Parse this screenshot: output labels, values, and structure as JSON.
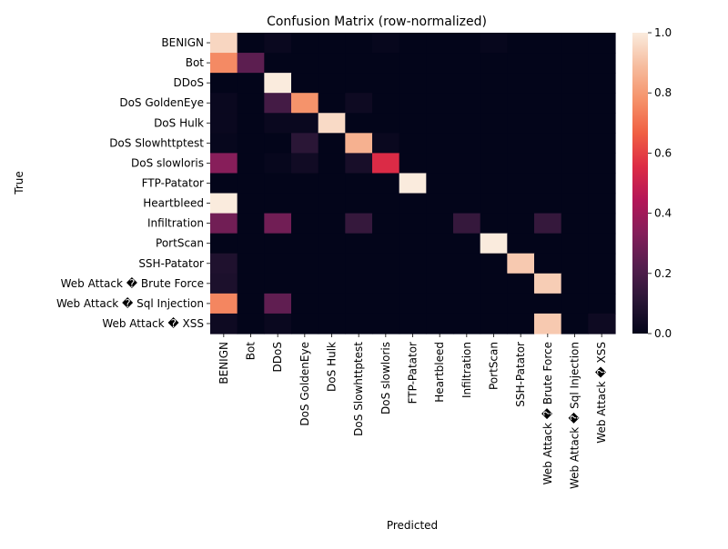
{
  "chart_data": {
    "type": "heatmap",
    "title": "Confusion Matrix (row-normalized)",
    "xlabel": "Predicted",
    "ylabel": "True",
    "labels": [
      "BENIGN",
      "Bot",
      "DDoS",
      "DoS GoldenEye",
      "DoS Hulk",
      "DoS Slowhttptest",
      "DoS slowloris",
      "FTP-Patator",
      "Heartbleed",
      "Infiltration",
      "PortScan",
      "SSH-Patator",
      "Web Attack � Brute Force",
      "Web Attack � Sql Injection",
      "Web Attack � XSS"
    ],
    "matrix": [
      [
        0.95,
        0.0,
        0.02,
        0.0,
        0.0,
        0.0,
        0.01,
        0.0,
        0.0,
        0.0,
        0.01,
        0.0,
        0.0,
        0.0,
        0.0
      ],
      [
        0.76,
        0.24,
        0.0,
        0.0,
        0.0,
        0.0,
        0.0,
        0.0,
        0.0,
        0.0,
        0.0,
        0.0,
        0.0,
        0.0,
        0.0
      ],
      [
        0.0,
        0.0,
        1.0,
        0.0,
        0.0,
        0.0,
        0.0,
        0.0,
        0.0,
        0.0,
        0.0,
        0.0,
        0.0,
        0.0,
        0.0
      ],
      [
        0.02,
        0.0,
        0.18,
        0.78,
        0.0,
        0.03,
        0.0,
        0.0,
        0.0,
        0.0,
        0.0,
        0.0,
        0.0,
        0.0,
        0.0
      ],
      [
        0.02,
        0.0,
        0.02,
        0.02,
        0.96,
        0.0,
        0.0,
        0.0,
        0.0,
        0.0,
        0.0,
        0.0,
        0.0,
        0.0,
        0.0
      ],
      [
        0.01,
        0.0,
        0.0,
        0.11,
        0.0,
        0.86,
        0.02,
        0.0,
        0.0,
        0.0,
        0.0,
        0.0,
        0.0,
        0.0,
        0.0
      ],
      [
        0.34,
        0.0,
        0.01,
        0.04,
        0.0,
        0.06,
        0.55,
        0.0,
        0.0,
        0.0,
        0.0,
        0.0,
        0.0,
        0.0,
        0.0
      ],
      [
        0.0,
        0.0,
        0.0,
        0.0,
        0.0,
        0.0,
        0.0,
        1.0,
        0.0,
        0.0,
        0.0,
        0.0,
        0.0,
        0.0,
        0.0
      ],
      [
        1.0,
        0.0,
        0.0,
        0.0,
        0.0,
        0.0,
        0.0,
        0.0,
        0.0,
        0.0,
        0.0,
        0.0,
        0.0,
        0.0,
        0.0
      ],
      [
        0.29,
        0.0,
        0.29,
        0.0,
        0.0,
        0.14,
        0.0,
        0.0,
        0.0,
        0.14,
        0.0,
        0.0,
        0.14,
        0.0,
        0.0
      ],
      [
        0.0,
        0.0,
        0.0,
        0.0,
        0.0,
        0.0,
        0.0,
        0.0,
        0.0,
        0.0,
        1.0,
        0.0,
        0.0,
        0.0,
        0.0
      ],
      [
        0.08,
        0.0,
        0.0,
        0.0,
        0.0,
        0.0,
        0.0,
        0.0,
        0.0,
        0.0,
        0.0,
        0.92,
        0.0,
        0.0,
        0.0
      ],
      [
        0.07,
        0.0,
        0.0,
        0.0,
        0.0,
        0.0,
        0.0,
        0.0,
        0.0,
        0.0,
        0.0,
        0.0,
        0.93,
        0.0,
        0.0
      ],
      [
        0.75,
        0.0,
        0.25,
        0.0,
        0.0,
        0.0,
        0.0,
        0.0,
        0.0,
        0.0,
        0.0,
        0.0,
        0.0,
        0.0,
        0.0
      ],
      [
        0.03,
        0.0,
        0.02,
        0.0,
        0.0,
        0.0,
        0.0,
        0.0,
        0.0,
        0.0,
        0.0,
        0.0,
        0.92,
        0.0,
        0.03
      ]
    ],
    "colorbar": {
      "range": [
        0.0,
        1.0
      ],
      "ticks": [
        "0.0",
        "0.2",
        "0.4",
        "0.6",
        "0.8",
        "1.0"
      ],
      "colormap": [
        "#03051a",
        "#2a1636",
        "#541e4e",
        "#841e5a",
        "#b41658",
        "#dd2c45",
        "#f06043",
        "#f5926a",
        "#f6bc9e",
        "#faebdd"
      ]
    },
    "grid": false,
    "legend": "right"
  }
}
